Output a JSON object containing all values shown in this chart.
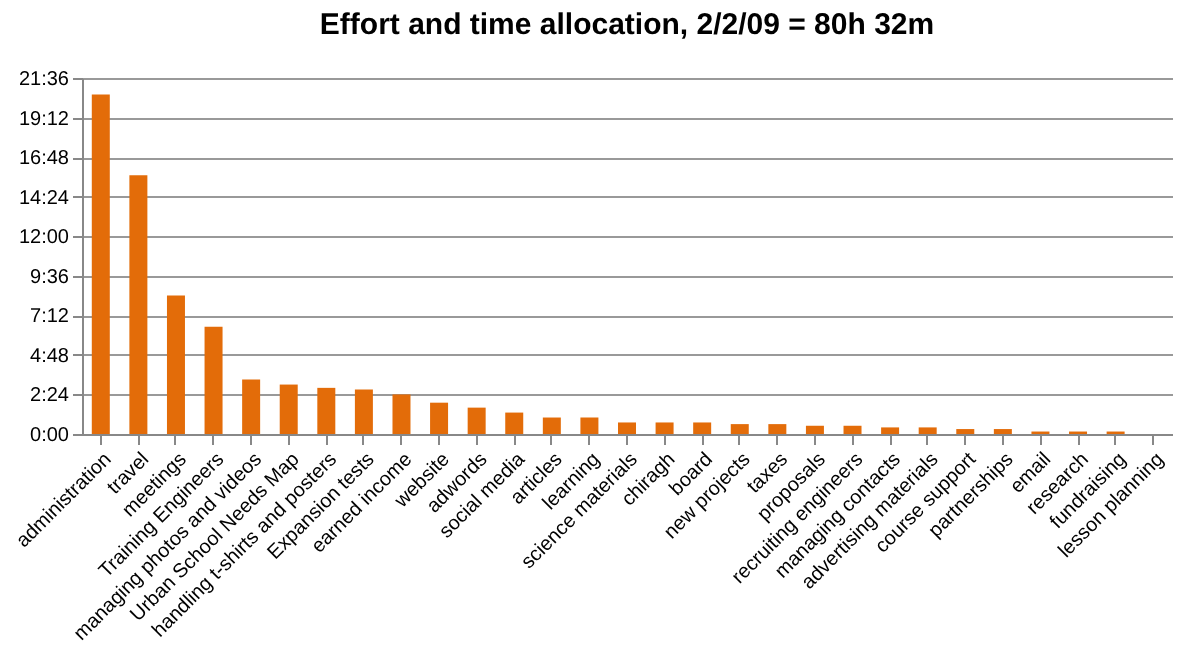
{
  "chart_data": {
    "type": "bar",
    "title": "Effort and time allocation, 2/2/09 = 80h 32m",
    "categories": [
      "administration",
      "travel",
      "meetings",
      "Training Engineers",
      "managing photos and videos",
      "Urban School Needs Map",
      "handling t-shirts and posters",
      "Expansion tests",
      "earned income",
      "website",
      "adwords",
      "social media",
      "articles",
      "learning",
      "science materials",
      "chiragh",
      "board",
      "new projects",
      "taxes",
      "proposals",
      "recruiting engineers",
      "managing contacts",
      "advertising materials",
      "course support",
      "partnerships",
      "email",
      "research",
      "fundraising",
      "lesson planning"
    ],
    "values": [
      20.6,
      15.7,
      8.4,
      6.5,
      3.3,
      3.0,
      2.8,
      2.7,
      2.4,
      1.9,
      1.6,
      1.3,
      1.0,
      1.0,
      0.7,
      0.7,
      0.7,
      0.6,
      0.6,
      0.5,
      0.5,
      0.4,
      0.4,
      0.3,
      0.3,
      0.15,
      0.15,
      0.15,
      0
    ],
    "color": "#e36c09",
    "ylim": [
      0,
      21.6
    ],
    "yticks": [
      {
        "value": 0,
        "label": "0:00"
      },
      {
        "value": 2.4,
        "label": "2:24"
      },
      {
        "value": 4.8,
        "label": "4:48"
      },
      {
        "value": 7.2,
        "label": "7:12"
      },
      {
        "value": 9.6,
        "label": "9:36"
      },
      {
        "value": 12,
        "label": "12:00"
      },
      {
        "value": 14.4,
        "label": "14:24"
      },
      {
        "value": 16.8,
        "label": "16:48"
      },
      {
        "value": 19.2,
        "label": "19:12"
      },
      {
        "value": 21.6,
        "label": "21:36"
      }
    ],
    "grid": "y"
  }
}
